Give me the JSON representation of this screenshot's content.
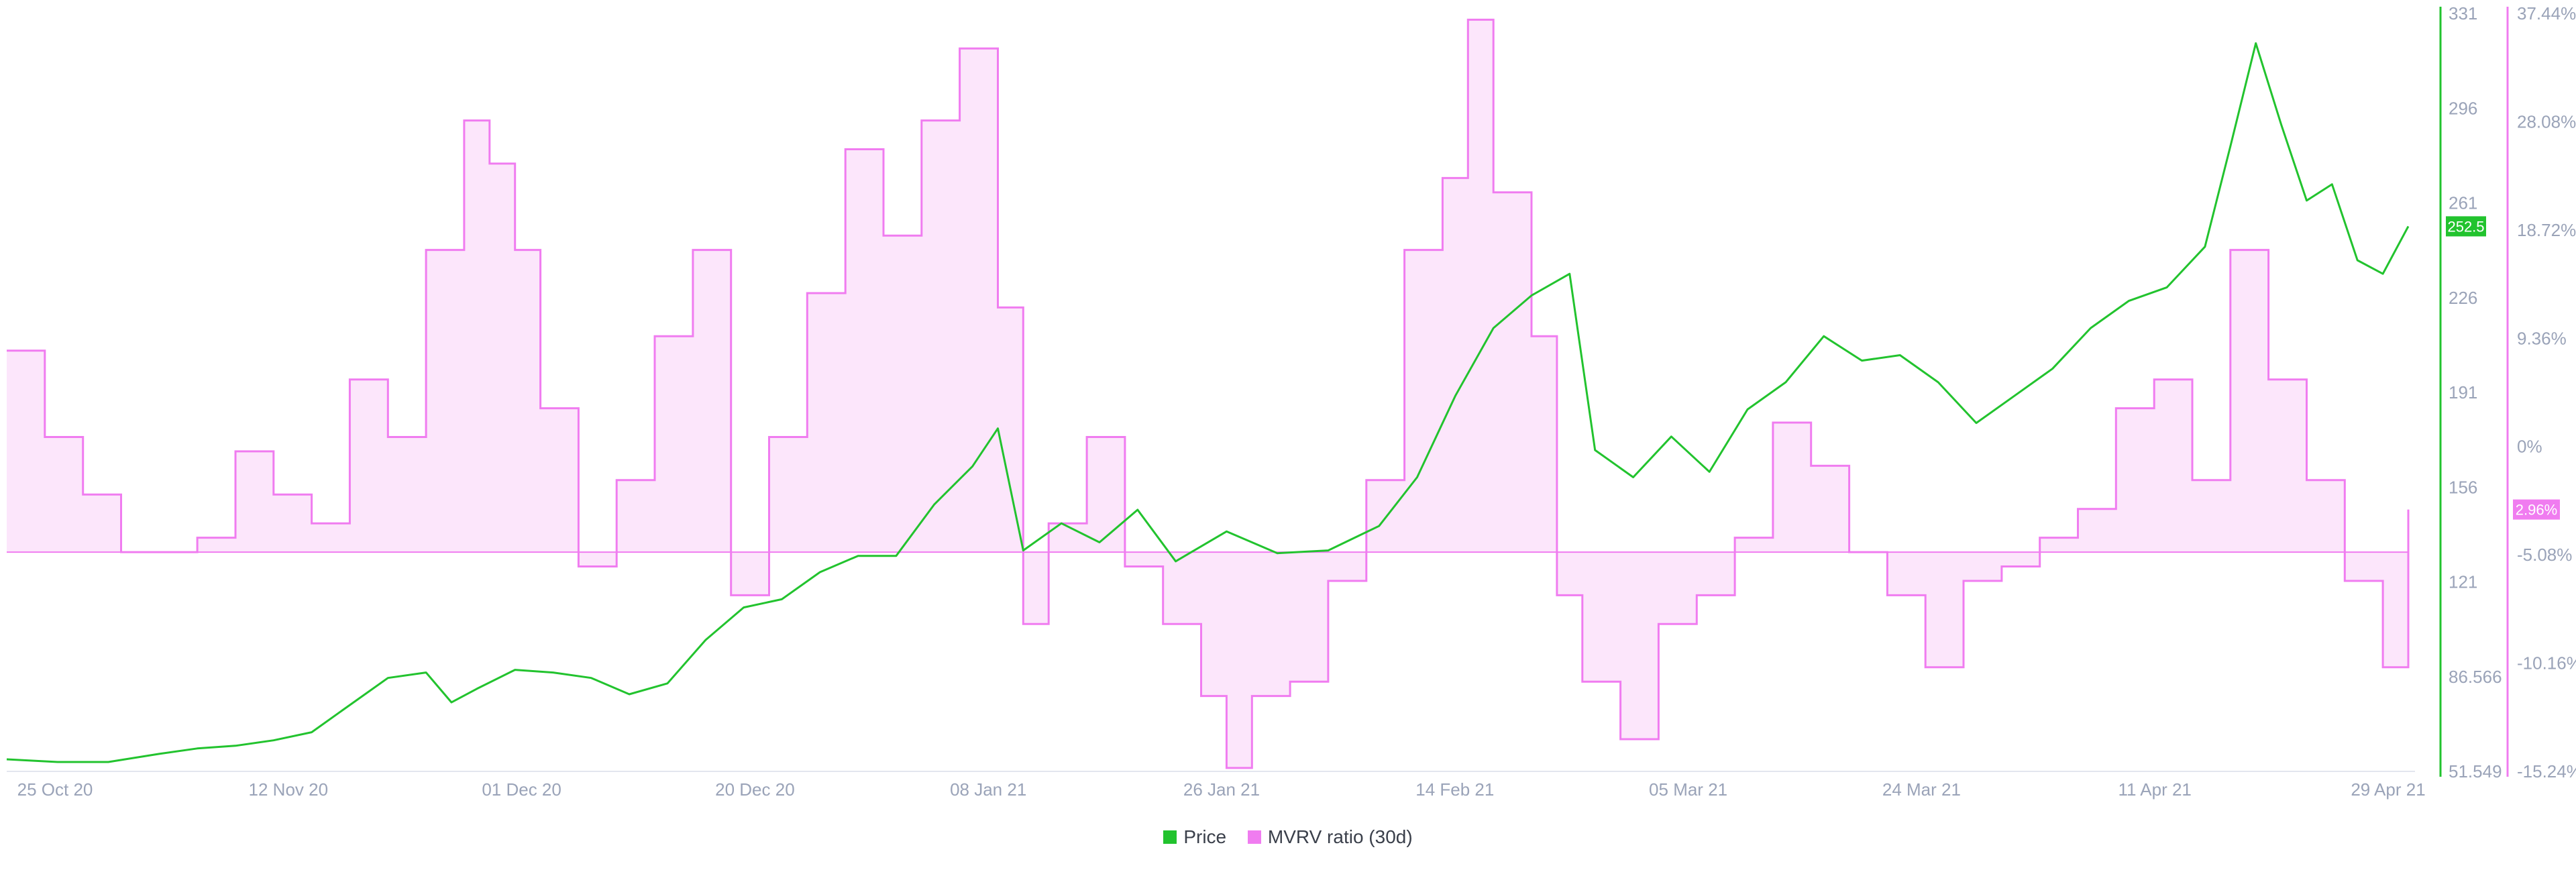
{
  "chart_data": {
    "type": "line",
    "title": "",
    "x_ticks": [
      "25 Oct 20",
      "12 Nov 20",
      "01 Dec 20",
      "20 Dec 20",
      "08 Jan 21",
      "26 Jan 21",
      "14 Feb 21",
      "05 Mar 21",
      "24 Mar 21",
      "11 Apr 21",
      "29 Apr 21"
    ],
    "x_range": [
      "2020-10-22",
      "2021-04-29"
    ],
    "y_left": {
      "label": "Price",
      "ticks": [
        "331",
        "296",
        "261",
        "226",
        "191",
        "156",
        "121",
        "86.566",
        "51.549"
      ],
      "range": [
        51.549,
        331
      ],
      "last_value_badge": "252.5"
    },
    "y_right": {
      "label": "MVRV ratio (30d)",
      "ticks": [
        "37.44%",
        "28.08%",
        "18.72%",
        "9.36%",
        "0%",
        "-5.08%",
        "-10.16%",
        "-15.24%"
      ],
      "range": [
        -15.24,
        37.44
      ],
      "last_value_badge": "2.96%"
    },
    "series": [
      {
        "name": "Price",
        "color": "#22c32e",
        "x": [
          "2020-10-22",
          "2020-10-26",
          "2020-10-30",
          "2020-11-03",
          "2020-11-06",
          "2020-11-09",
          "2020-11-12",
          "2020-11-15",
          "2020-11-18",
          "2020-11-21",
          "2020-11-24",
          "2020-11-26",
          "2020-11-28",
          "2020-12-01",
          "2020-12-04",
          "2020-12-07",
          "2020-12-10",
          "2020-12-13",
          "2020-12-16",
          "2020-12-19",
          "2020-12-22",
          "2020-12-25",
          "2020-12-28",
          "2020-12-31",
          "2021-01-03",
          "2021-01-06",
          "2021-01-08",
          "2021-01-10",
          "2021-01-13",
          "2021-01-16",
          "2021-01-19",
          "2021-01-22",
          "2021-01-26",
          "2021-01-30",
          "2021-02-03",
          "2021-02-07",
          "2021-02-10",
          "2021-02-13",
          "2021-02-16",
          "2021-02-19",
          "2021-02-22",
          "2021-02-24",
          "2021-02-27",
          "2021-03-02",
          "2021-03-05",
          "2021-03-08",
          "2021-03-11",
          "2021-03-14",
          "2021-03-17",
          "2021-03-20",
          "2021-03-23",
          "2021-03-26",
          "2021-03-29",
          "2021-04-01",
          "2021-04-04",
          "2021-04-07",
          "2021-04-10",
          "2021-04-13",
          "2021-04-15",
          "2021-04-17",
          "2021-04-19",
          "2021-04-21",
          "2021-04-23",
          "2021-04-25",
          "2021-04-27",
          "2021-04-29"
        ],
        "values": [
          56,
          55,
          55,
          58,
          60,
          61,
          63,
          66,
          76,
          86,
          88,
          77,
          82,
          89,
          88,
          86,
          80,
          84,
          100,
          112,
          115,
          125,
          131,
          131,
          150,
          164,
          178,
          133,
          143,
          136,
          148,
          129,
          140,
          132,
          133,
          142,
          160,
          190,
          215,
          227,
          235,
          170,
          160,
          175,
          162,
          185,
          195,
          212,
          203,
          205,
          195,
          180,
          190,
          200,
          215,
          225,
          230,
          245,
          282,
          320,
          290,
          262,
          268,
          240,
          235,
          252.5
        ]
      },
      {
        "name": "MVRV ratio (30d)",
        "color": "#f07cf0",
        "x": [
          "2020-10-22",
          "2020-10-25",
          "2020-10-28",
          "2020-10-31",
          "2020-11-03",
          "2020-11-06",
          "2020-11-09",
          "2020-11-12",
          "2020-11-15",
          "2020-11-18",
          "2020-11-21",
          "2020-11-24",
          "2020-11-27",
          "2020-11-29",
          "2020-12-01",
          "2020-12-03",
          "2020-12-06",
          "2020-12-09",
          "2020-12-12",
          "2020-12-15",
          "2020-12-18",
          "2020-12-21",
          "2020-12-24",
          "2020-12-27",
          "2020-12-30",
          "2021-01-02",
          "2021-01-05",
          "2021-01-08",
          "2021-01-10",
          "2021-01-12",
          "2021-01-15",
          "2021-01-18",
          "2021-01-21",
          "2021-01-24",
          "2021-01-26",
          "2021-01-28",
          "2021-01-31",
          "2021-02-03",
          "2021-02-06",
          "2021-02-09",
          "2021-02-12",
          "2021-02-14",
          "2021-02-16",
          "2021-02-19",
          "2021-02-21",
          "2021-02-23",
          "2021-02-26",
          "2021-03-01",
          "2021-03-04",
          "2021-03-07",
          "2021-03-10",
          "2021-03-13",
          "2021-03-16",
          "2021-03-19",
          "2021-03-22",
          "2021-03-25",
          "2021-03-28",
          "2021-03-31",
          "2021-04-03",
          "2021-04-06",
          "2021-04-09",
          "2021-04-12",
          "2021-04-15",
          "2021-04-18",
          "2021-04-21",
          "2021-04-24",
          "2021-04-27",
          "2021-04-29"
        ],
        "values": [
          14,
          8,
          4,
          0,
          0,
          1,
          7,
          4,
          2,
          12,
          8,
          21,
          30,
          27,
          21,
          10,
          -1,
          5,
          15,
          21,
          -3,
          8,
          18,
          28,
          22,
          30,
          35,
          17,
          -5,
          2,
          8,
          -1,
          -5,
          -10,
          -15,
          -10,
          -9,
          -2,
          5,
          21,
          26,
          37,
          25,
          15,
          -3,
          -9,
          -13,
          -5,
          -3,
          1,
          9,
          6,
          0,
          -3,
          -8,
          -2,
          -1,
          1,
          3,
          10,
          12,
          5,
          21,
          12,
          5,
          -2,
          -8,
          2.96
        ]
      }
    ],
    "legend_position": "bottom-center",
    "grid": false
  },
  "legend": {
    "price_label": "Price",
    "mvrv_label": "MVRV ratio (30d)"
  }
}
